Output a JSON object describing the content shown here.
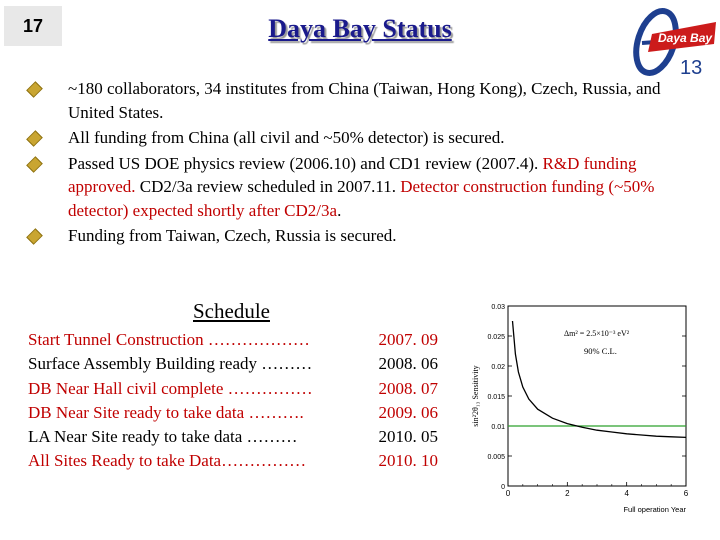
{
  "slide": {
    "number": "17",
    "title": "Daya Bay Status"
  },
  "logo": {
    "text": "Daya Bay",
    "theta": "θ",
    "subscript": "13"
  },
  "bullets": [
    {
      "segments": [
        {
          "text": "~180 collaborators, 34 institutes from China (Taiwan, Hong Kong), Czech, Russia, and United States.",
          "color": "#000000"
        }
      ]
    },
    {
      "segments": [
        {
          "text": "All funding from China (all civil and ~50% detector) is secured.",
          "color": "#000000"
        }
      ]
    },
    {
      "segments": [
        {
          "text": "Passed US DOE physics review (2006.10) and CD1 review (2007.4). ",
          "color": "#000000"
        },
        {
          "text": "R&D funding approved. ",
          "color": "#c00000"
        },
        {
          "text": "CD2/3a review scheduled in 2007.11. ",
          "color": "#000000"
        },
        {
          "text": "Detector construction funding (~50% detector) expected shortly after CD2/3a",
          "color": "#c00000"
        },
        {
          "text": ".",
          "color": "#000000"
        }
      ]
    },
    {
      "segments": [
        {
          "text": "Funding from Taiwan, Czech, Russia is secured.",
          "color": "#000000"
        }
      ]
    }
  ],
  "schedule": {
    "title": "Schedule",
    "items": [
      {
        "label": "Start Tunnel Construction ………………",
        "date": "2007. 09",
        "color": "#c00000"
      },
      {
        "label": "Surface Assembly Building ready ………",
        "date": "2008. 06",
        "color": "#000000"
      },
      {
        "label": "DB Near Hall civil complete ……………",
        "date": "2008. 07",
        "color": "#c00000"
      },
      {
        "label": "DB Near Site ready to take data  ……….",
        "date": "2009. 06",
        "color": "#c00000"
      },
      {
        "label": "LA Near Site ready to take data   ………",
        "date": "2010. 05",
        "color": "#000000"
      },
      {
        "label": "All Sites Ready to take Data……………",
        "date": "2010. 10",
        "color": "#c00000"
      }
    ]
  },
  "chart_data": {
    "type": "line",
    "xlabel": "Full operation Year",
    "ylabel": "sin²2θ₁₃ Sensitivity",
    "xlim": [
      0,
      6
    ],
    "ylim": [
      0,
      0.03
    ],
    "xticks": [
      "0",
      "2",
      "4",
      "6"
    ],
    "yticks": [
      "0",
      "0.005",
      "0.01",
      "0.015",
      "0.02",
      "0.025",
      "0.03"
    ],
    "legend_text": "Δm² = 2.5×10⁻³ eV²",
    "annotation": "90% C.L.",
    "series": [
      {
        "x": [
          0.15,
          0.25,
          0.35,
          0.5,
          0.7,
          1.0,
          1.5,
          2.0,
          2.5,
          3.0,
          3.5,
          4.0,
          4.5,
          5.0,
          5.5,
          6.0
        ],
        "y": [
          0.0275,
          0.022,
          0.019,
          0.0165,
          0.0145,
          0.0128,
          0.0113,
          0.0104,
          0.0098,
          0.0093,
          0.009,
          0.0087,
          0.0085,
          0.0083,
          0.0082,
          0.0081
        ],
        "color": "#000000"
      }
    ],
    "reference_line": {
      "y": 0.01,
      "color": "#2ca02c"
    }
  }
}
